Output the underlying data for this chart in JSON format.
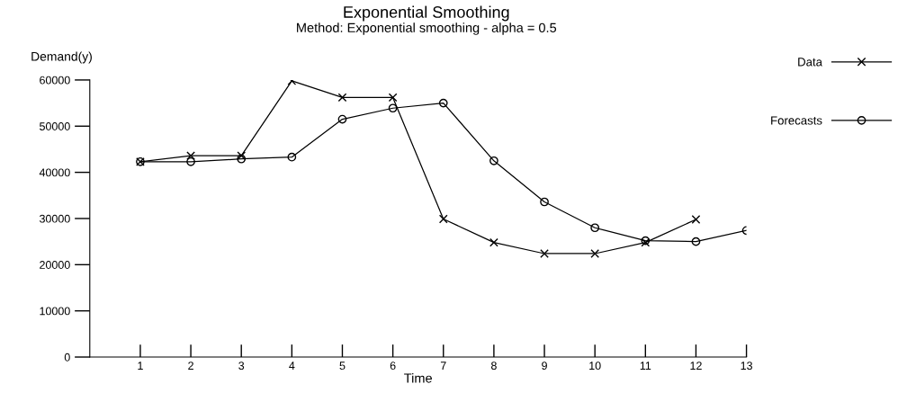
{
  "chart_data": {
    "type": "line",
    "title": "Exponential Smoothing",
    "subtitle": "Method: Exponential smoothing - alpha = 0.5",
    "xlabel": "Time",
    "ylabel": "Demand(y)",
    "x": [
      1,
      2,
      3,
      4,
      5,
      6,
      7,
      8,
      9,
      10,
      11,
      12,
      13
    ],
    "series": [
      {
        "name": "Data",
        "color": "#000000",
        "marker": "cross",
        "values": [
          42300,
          43600,
          43600,
          59800,
          56200,
          56200,
          29900,
          24800,
          22400,
          22400,
          24800,
          29800,
          null
        ]
      },
      {
        "name": "Forecasts",
        "color": "#000000",
        "marker": "circle",
        "values": [
          42300,
          42300,
          42900,
          43300,
          51500,
          53900,
          55000,
          42500,
          33600,
          28000,
          25200,
          25000,
          27400
        ]
      }
    ],
    "xlim": [
      0,
      13
    ],
    "xticks": [
      1,
      2,
      3,
      4,
      5,
      6,
      7,
      8,
      9,
      10,
      11,
      12,
      13
    ],
    "ylim": [
      0,
      60000
    ],
    "yticks": [
      0,
      10000,
      20000,
      30000,
      40000,
      50000,
      60000
    ],
    "grid": false,
    "legend": "top right",
    "line_style": "solid"
  }
}
